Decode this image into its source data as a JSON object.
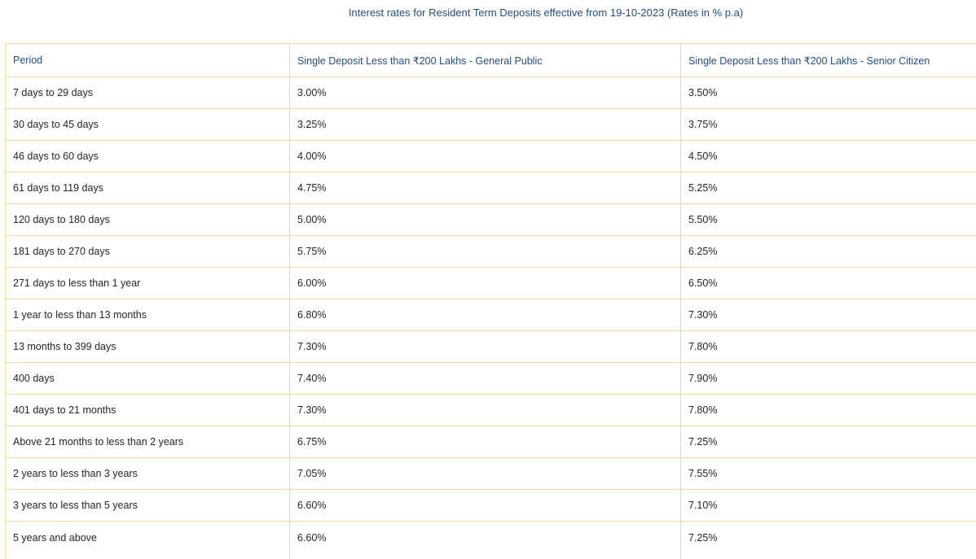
{
  "title": "Interest rates for Resident Term Deposits effective from 19-10-2023 (Rates in % p.a)",
  "table": {
    "headers": [
      "Period",
      "Single Deposit Less than ₹200 Lakhs - General Public",
      "Single Deposit Less than ₹200 Lakhs - Senior Citizen"
    ],
    "rows": [
      [
        "7 days to 29 days",
        "3.00%",
        "3.50%"
      ],
      [
        "30 days to 45 days",
        "3.25%",
        "3.75%"
      ],
      [
        "46 days to 60 days",
        "4.00%",
        "4.50%"
      ],
      [
        "61 days to 119 days",
        "4.75%",
        "5.25%"
      ],
      [
        "120 days to 180 days",
        "5.00%",
        "5.50%"
      ],
      [
        "181 days to 270 days",
        "5.75%",
        "6.25%"
      ],
      [
        "271 days to less than 1 year",
        "6.00%",
        "6.50%"
      ],
      [
        "1 year to less than 13 months",
        "6.80%",
        "7.30%"
      ],
      [
        "13 months to 399 days",
        "7.30%",
        "7.80%"
      ],
      [
        "400 days",
        "7.40%",
        "7.90%"
      ],
      [
        "401 days to 21 months",
        "7.30%",
        "7.80%"
      ],
      [
        "Above 21 months to less than 2 years",
        "6.75%",
        "7.25%"
      ],
      [
        "2 years to less than 3 years",
        "7.05%",
        "7.55%"
      ],
      [
        "3 years to less than 5 years",
        "6.60%",
        "7.10%"
      ],
      [
        "5 years and above",
        "6.60%",
        "7.25%"
      ]
    ]
  },
  "colors": {
    "header_text": "#1f4e8c",
    "body_text": "#262626",
    "border": "#f3d9a4",
    "background": "#ffffff"
  }
}
